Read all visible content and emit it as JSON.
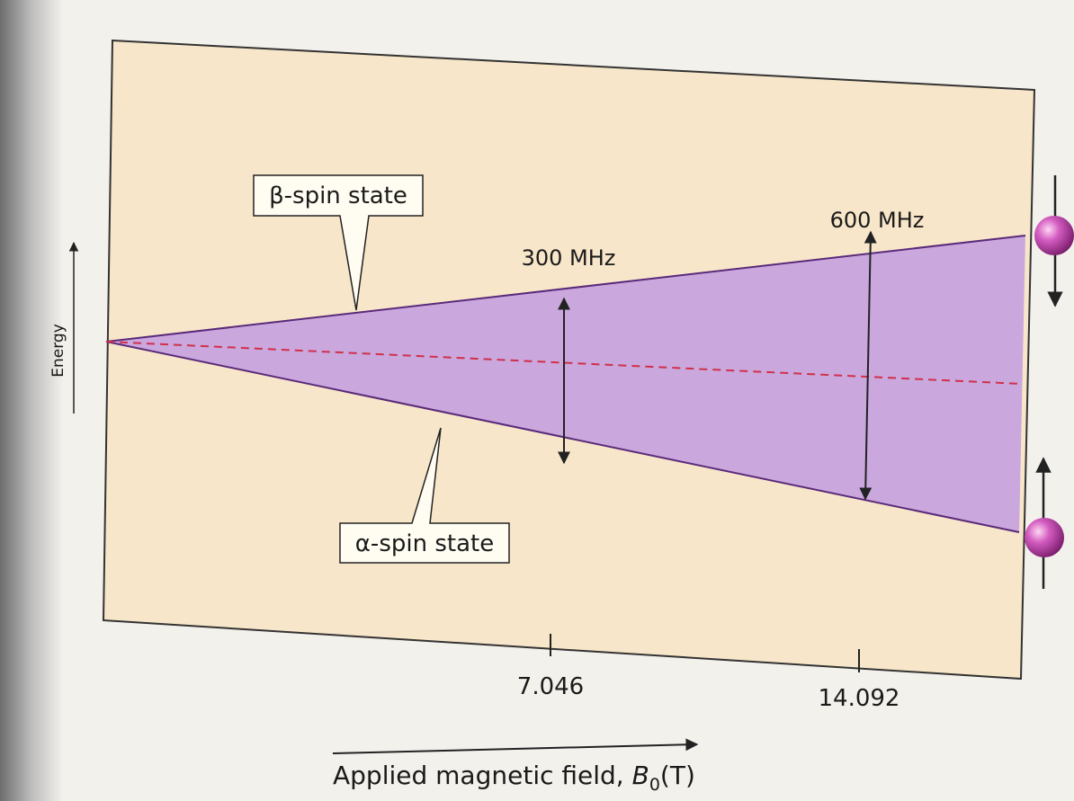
{
  "diagram": {
    "energy_label": "Energy",
    "upper_state": "β-spin state",
    "lower_state": "α-spin state",
    "gap_labels": [
      "300 MHz",
      "600 MHz"
    ],
    "field_ticks": [
      "7.046",
      "14.092"
    ],
    "x_axis_label": {
      "prefix": "Applied magnetic field, ",
      "symbol": "B",
      "subscript": "0",
      "unit": "(T)"
    }
  }
}
